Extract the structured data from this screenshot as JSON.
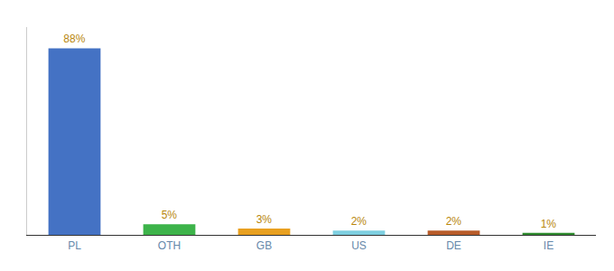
{
  "chart_data": {
    "type": "bar",
    "categories": [
      "PL",
      "OTH",
      "GB",
      "US",
      "DE",
      "IE"
    ],
    "values": [
      88,
      5,
      3,
      2,
      2,
      1
    ],
    "value_labels": [
      "88%",
      "5%",
      "3%",
      "2%",
      "2%",
      "1%"
    ],
    "data_labels": true,
    "colors": [
      "#4472c4",
      "#3db34a",
      "#e8a020",
      "#7ecfe0",
      "#b85c2a",
      "#2e8b2e"
    ],
    "ylim": [
      0,
      98
    ],
    "grid": false,
    "tick_labels": "x"
  }
}
